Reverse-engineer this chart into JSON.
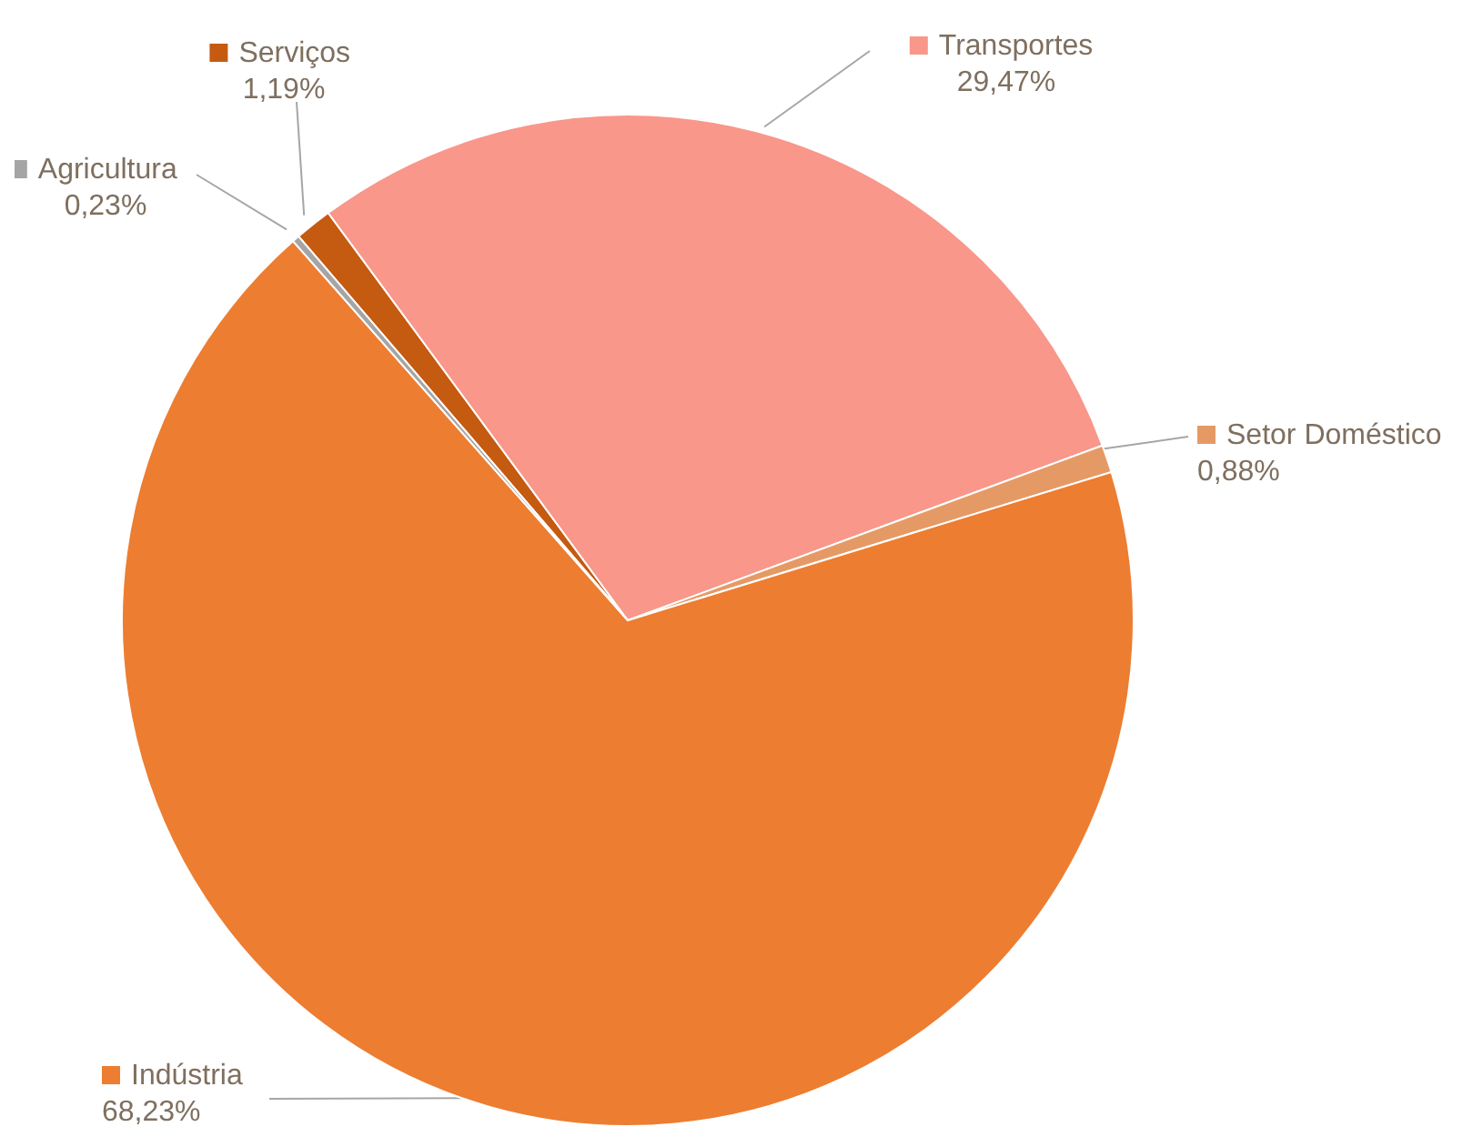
{
  "chart_data": {
    "type": "pie",
    "categories": [
      "Serviços",
      "Transportes",
      "Setor Doméstico",
      "Indústria",
      "Agricultura"
    ],
    "values": [
      1.19,
      29.47,
      0.88,
      68.23,
      0.23
    ],
    "colors": [
      "#c55a11",
      "#f8978a",
      "#e59a66",
      "#ed7d31",
      "#a5a5a5"
    ],
    "value_labels": [
      "1,19%",
      "29,47%",
      "0,88%",
      "68,23%",
      "0,23%"
    ],
    "legend": "right"
  }
}
